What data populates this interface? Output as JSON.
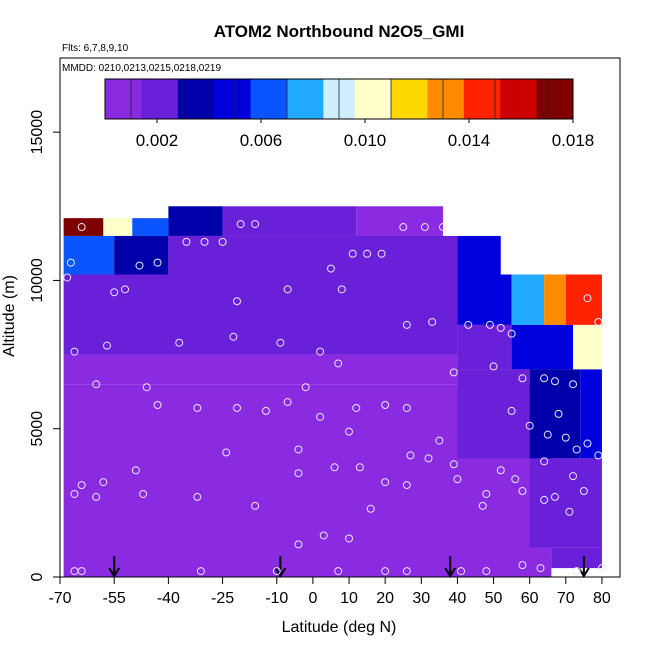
{
  "chart_data": {
    "type": "heatmap",
    "title": "ATOM2 Northbound N2O5_GMI",
    "flights_label": "Flts: 6,7,8,9,10",
    "dates_label": "MMDD: 0210,0213,0215,0218,0219",
    "xlabel": "Latitude (deg N)",
    "ylabel": "Altitude (m)",
    "xlim": [
      -70,
      85
    ],
    "ylim": [
      0,
      17500
    ],
    "x_ticks": [
      -70,
      -55,
      -40,
      -25,
      -10,
      0,
      10,
      20,
      30,
      40,
      50,
      60,
      70,
      80
    ],
    "x_tick_labels": [
      "-70",
      "-55",
      "-40",
      "-25",
      "-10",
      "0",
      "10",
      "20",
      "30",
      "40",
      "50",
      "60",
      "70",
      "80"
    ],
    "y_ticks": [
      0,
      5000,
      10000,
      15000
    ],
    "y_tick_labels": [
      "0",
      "5000",
      "10000",
      "15000"
    ],
    "colorbar": {
      "range": [
        0,
        0.018
      ],
      "ticks": [
        0.002,
        0.006,
        0.01,
        0.014,
        0.018
      ],
      "tick_labels": [
        "0.002",
        "0.006",
        "0.010",
        "0.014",
        "0.018"
      ],
      "colors": [
        "#8a2be2",
        "#6a1fd8",
        "#0000aa",
        "#0000dd",
        "#0a55ff",
        "#22aaff",
        "#cfefff",
        "#ffffcc",
        "#ffd700",
        "#ff8c00",
        "#ff2200",
        "#cc0000",
        "#7f0000"
      ]
    },
    "background_value": 0.0003,
    "field_cells": [
      {
        "x": [
          -69,
          -58
        ],
        "y": [
          11500,
          12100
        ],
        "value": 0.0175
      },
      {
        "x": [
          -58,
          -50
        ],
        "y": [
          11500,
          12100
        ],
        "value": 0.011
      },
      {
        "x": [
          -50,
          -40
        ],
        "y": [
          11500,
          12100
        ],
        "value": 0.006
      },
      {
        "x": [
          -40,
          -25
        ],
        "y": [
          11500,
          12500
        ],
        "value": 0.003
      },
      {
        "x": [
          -25,
          12
        ],
        "y": [
          11500,
          12500
        ],
        "value": 0.0015
      },
      {
        "x": [
          12,
          36
        ],
        "y": [
          11500,
          12500
        ],
        "value": 0.0012
      },
      {
        "x": [
          -69,
          -55
        ],
        "y": [
          10200,
          11500
        ],
        "value": 0.0065
      },
      {
        "x": [
          -55,
          -40
        ],
        "y": [
          10200,
          11500
        ],
        "value": 0.0035
      },
      {
        "x": [
          -40,
          40
        ],
        "y": [
          10200,
          11500
        ],
        "value": 0.0015
      },
      {
        "x": [
          40,
          52
        ],
        "y": [
          10200,
          11500
        ],
        "value": 0.005
      },
      {
        "x": [
          -69,
          40
        ],
        "y": [
          7500,
          10200
        ],
        "value": 0.0018
      },
      {
        "x": [
          40,
          55
        ],
        "y": [
          8500,
          10200
        ],
        "value": 0.0055
      },
      {
        "x": [
          55,
          64
        ],
        "y": [
          8500,
          10200
        ],
        "value": 0.007
      },
      {
        "x": [
          64,
          70
        ],
        "y": [
          8500,
          10200
        ],
        "value": 0.0125
      },
      {
        "x": [
          70,
          80
        ],
        "y": [
          8500,
          10200
        ],
        "value": 0.015
      },
      {
        "x": [
          40,
          55
        ],
        "y": [
          7000,
          8500
        ],
        "value": 0.0022
      },
      {
        "x": [
          55,
          72
        ],
        "y": [
          7000,
          8500
        ],
        "value": 0.0045
      },
      {
        "x": [
          72,
          80
        ],
        "y": [
          7000,
          8500
        ],
        "value": 0.01
      },
      {
        "x": [
          -69,
          40
        ],
        "y": [
          6500,
          7500
        ],
        "value": 0.0012
      },
      {
        "x": [
          40,
          60
        ],
        "y": [
          4000,
          7000
        ],
        "value": 0.0018
      },
      {
        "x": [
          60,
          74
        ],
        "y": [
          4000,
          7000
        ],
        "value": 0.003
      },
      {
        "x": [
          74,
          80
        ],
        "y": [
          4000,
          7000
        ],
        "value": 0.0045
      },
      {
        "x": [
          60,
          80
        ],
        "y": [
          1000,
          4000
        ],
        "value": 0.0022
      },
      {
        "x": [
          66,
          80
        ],
        "y": [
          300,
          1000
        ],
        "value": 0.0018
      }
    ],
    "profile_markers_lat": [
      -55,
      -9,
      38,
      75
    ],
    "sample_points": [
      {
        "x": -68,
        "y": 10100
      },
      {
        "x": -67,
        "y": 10600
      },
      {
        "x": -64,
        "y": 11800
      },
      {
        "x": -66,
        "y": 7600
      },
      {
        "x": -57,
        "y": 7800
      },
      {
        "x": -55,
        "y": 9600
      },
      {
        "x": -52,
        "y": 9700
      },
      {
        "x": -48,
        "y": 10500
      },
      {
        "x": -43,
        "y": 10600
      },
      {
        "x": -35,
        "y": 11300
      },
      {
        "x": -30,
        "y": 11300
      },
      {
        "x": -25,
        "y": 11300
      },
      {
        "x": -20,
        "y": 11900
      },
      {
        "x": -16,
        "y": 11900
      },
      {
        "x": -21,
        "y": 9300
      },
      {
        "x": -7,
        "y": 9700
      },
      {
        "x": 5,
        "y": 10400
      },
      {
        "x": 8,
        "y": 9700
      },
      {
        "x": 11,
        "y": 10900
      },
      {
        "x": 15,
        "y": 10900
      },
      {
        "x": 19,
        "y": 10900
      },
      {
        "x": 25,
        "y": 11800
      },
      {
        "x": 31,
        "y": 11800
      },
      {
        "x": 36,
        "y": 11800
      },
      {
        "x": 26,
        "y": 8500
      },
      {
        "x": 33,
        "y": 8600
      },
      {
        "x": 39,
        "y": 6900
      },
      {
        "x": 43,
        "y": 8500
      },
      {
        "x": 49,
        "y": 8500
      },
      {
        "x": 52,
        "y": 8400
      },
      {
        "x": 55,
        "y": 8200
      },
      {
        "x": 50,
        "y": 7100
      },
      {
        "x": 58,
        "y": 6700
      },
      {
        "x": 64,
        "y": 6700
      },
      {
        "x": 67,
        "y": 6600
      },
      {
        "x": 72,
        "y": 6500
      },
      {
        "x": 76,
        "y": 9400
      },
      {
        "x": 79,
        "y": 8600
      },
      {
        "x": -60,
        "y": 6500
      },
      {
        "x": -46,
        "y": 6400
      },
      {
        "x": -37,
        "y": 7900
      },
      {
        "x": -22,
        "y": 8100
      },
      {
        "x": -9,
        "y": 7900
      },
      {
        "x": 2,
        "y": 7600
      },
      {
        "x": 7,
        "y": 7200
      },
      {
        "x": -43,
        "y": 5800
      },
      {
        "x": -32,
        "y": 5700
      },
      {
        "x": -21,
        "y": 5700
      },
      {
        "x": -13,
        "y": 5600
      },
      {
        "x": -7,
        "y": 5900
      },
      {
        "x": -2,
        "y": 6400
      },
      {
        "x": 2,
        "y": 5400
      },
      {
        "x": 10,
        "y": 4900
      },
      {
        "x": 12,
        "y": 5700
      },
      {
        "x": 20,
        "y": 5800
      },
      {
        "x": 26,
        "y": 5700
      },
      {
        "x": 35,
        "y": 4600
      },
      {
        "x": 55,
        "y": 5600
      },
      {
        "x": 60,
        "y": 5100
      },
      {
        "x": 65,
        "y": 4800
      },
      {
        "x": 68,
        "y": 5500
      },
      {
        "x": 70,
        "y": 4700
      },
      {
        "x": 73,
        "y": 4300
      },
      {
        "x": 76,
        "y": 4500
      },
      {
        "x": 79,
        "y": 4100
      },
      {
        "x": -24,
        "y": 4200
      },
      {
        "x": -4,
        "y": 4300
      },
      {
        "x": -4,
        "y": 3500
      },
      {
        "x": 6,
        "y": 3700
      },
      {
        "x": 13,
        "y": 3700
      },
      {
        "x": 27,
        "y": 4100
      },
      {
        "x": 32,
        "y": 4000
      },
      {
        "x": 39,
        "y": 3800
      },
      {
        "x": 40,
        "y": 3300
      },
      {
        "x": 52,
        "y": 3600
      },
      {
        "x": 56,
        "y": 3300
      },
      {
        "x": 64,
        "y": 3900
      },
      {
        "x": 72,
        "y": 3400
      },
      {
        "x": -49,
        "y": 3600
      },
      {
        "x": -58,
        "y": 3200
      },
      {
        "x": -64,
        "y": 3100
      },
      {
        "x": -66,
        "y": 2800
      },
      {
        "x": -60,
        "y": 2700
      },
      {
        "x": -47,
        "y": 2800
      },
      {
        "x": -32,
        "y": 2700
      },
      {
        "x": -16,
        "y": 2400
      },
      {
        "x": 20,
        "y": 3200
      },
      {
        "x": 26,
        "y": 3100
      },
      {
        "x": 48,
        "y": 2800
      },
      {
        "x": 58,
        "y": 2900
      },
      {
        "x": 64,
        "y": 2600
      },
      {
        "x": 67,
        "y": 2700
      },
      {
        "x": 71,
        "y": 2200
      },
      {
        "x": 75,
        "y": 2900
      },
      {
        "x": -4,
        "y": 1100
      },
      {
        "x": 3,
        "y": 1400
      },
      {
        "x": 10,
        "y": 1300
      },
      {
        "x": 16,
        "y": 2300
      },
      {
        "x": 47,
        "y": 2400
      },
      {
        "x": -66,
        "y": 200
      },
      {
        "x": -64,
        "y": 200
      },
      {
        "x": -31,
        "y": 200
      },
      {
        "x": -10,
        "y": 200
      },
      {
        "x": 7,
        "y": 200
      },
      {
        "x": 20,
        "y": 200
      },
      {
        "x": 26,
        "y": 200
      },
      {
        "x": 41,
        "y": 200
      },
      {
        "x": 48,
        "y": 200
      },
      {
        "x": 58,
        "y": 400
      },
      {
        "x": 63,
        "y": 300
      },
      {
        "x": 73,
        "y": 200
      },
      {
        "x": 80,
        "y": 300
      }
    ]
  }
}
